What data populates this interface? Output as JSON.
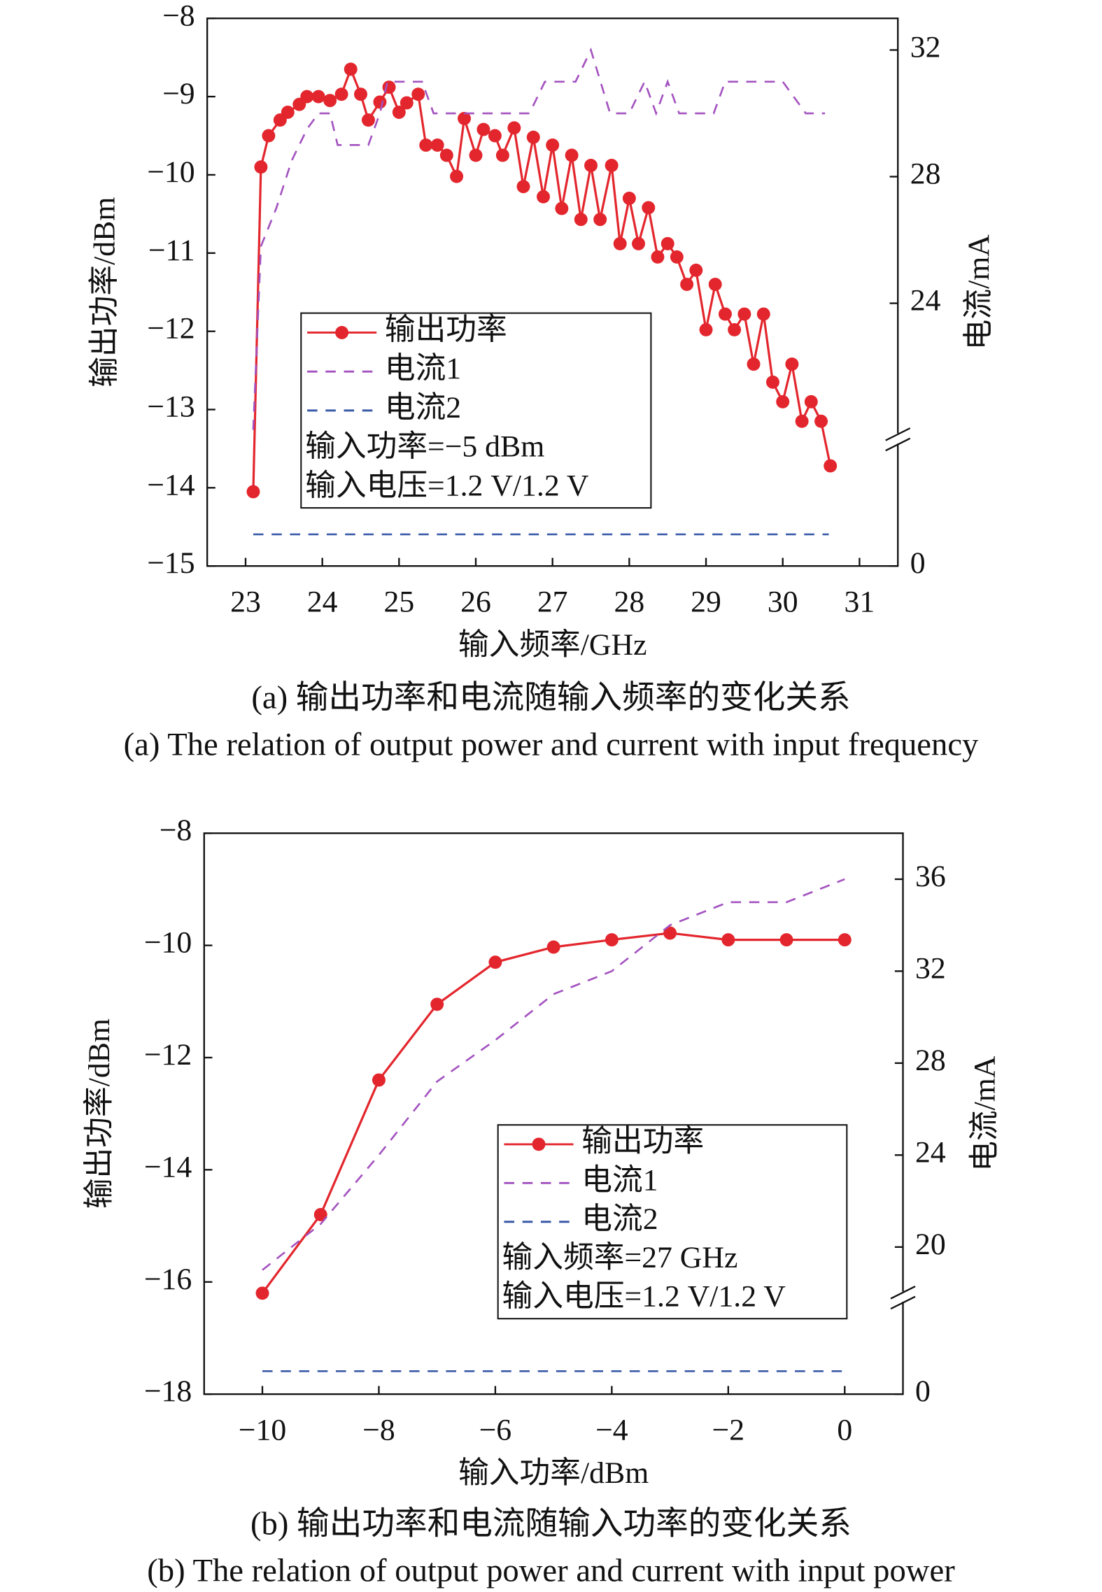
{
  "chart_data": [
    {
      "type": "line",
      "xlabel": "输入频率/GHz",
      "ylabel": "输出功率/dBm",
      "y2label": "电流/mA",
      "caption_zh": "(a) 输出功率和电流随输入频率的变化关系",
      "caption_en": "(a) The relation of output power and current with input frequency",
      "xlim": [
        22.5,
        31.5
      ],
      "xticks": [
        23,
        24,
        25,
        26,
        27,
        28,
        29,
        30,
        31
      ],
      "ylim": [
        -15,
        -8
      ],
      "yticks": [
        {
          "value": -15,
          "label": "−15"
        },
        {
          "value": -14,
          "label": "−14"
        },
        {
          "value": -13,
          "label": "−13"
        },
        {
          "value": -12,
          "label": "−12"
        },
        {
          "value": -11,
          "label": "−11"
        },
        {
          "value": -10,
          "label": "−10"
        },
        {
          "value": -9,
          "label": "−9"
        },
        {
          "value": -8,
          "label": "−8"
        }
      ],
      "y2lim": [
        0,
        33
      ],
      "y2break": [
        4,
        19.7
      ],
      "y2ticks": [
        0,
        24,
        28,
        32
      ],
      "annotations": [
        "输入功率=−5 dBm",
        "输入电压=1.2 V/1.2 V"
      ],
      "series": [
        {
          "name": "输出功率",
          "color": "#e3262d",
          "marker": "circle",
          "dash": false,
          "x": [
            23.1,
            23.2,
            23.3,
            23.45,
            23.55,
            23.7,
            23.8,
            23.95,
            24.1,
            24.25,
            24.37,
            24.5,
            24.6,
            24.75,
            24.87,
            25.0,
            25.1,
            25.25,
            25.35,
            25.5,
            25.62,
            25.75,
            25.85,
            26.0,
            26.1,
            26.25,
            26.35,
            26.5,
            26.62,
            26.75,
            26.88,
            27.0,
            27.12,
            27.25,
            27.37,
            27.5,
            27.62,
            27.77,
            27.88,
            28.0,
            28.12,
            28.25,
            28.37,
            28.5,
            28.62,
            28.75,
            28.87,
            29.0,
            29.12,
            29.25,
            29.37,
            29.5,
            29.62,
            29.75,
            29.87,
            30.0,
            30.12,
            30.25,
            30.37,
            30.5,
            30.62
          ],
          "values": [
            -14.05,
            -9.9,
            -9.5,
            -9.3,
            -9.2,
            -9.1,
            -9.0,
            -9.0,
            -9.05,
            -8.97,
            -8.65,
            -8.97,
            -9.3,
            -9.07,
            -8.88,
            -9.2,
            -9.08,
            -8.97,
            -9.62,
            -9.62,
            -9.75,
            -10.02,
            -9.28,
            -9.75,
            -9.42,
            -9.5,
            -9.75,
            -9.4,
            -10.15,
            -9.52,
            -10.28,
            -9.62,
            -10.43,
            -9.75,
            -10.57,
            -9.88,
            -10.57,
            -9.88,
            -10.88,
            -10.3,
            -10.88,
            -10.42,
            -11.05,
            -10.88,
            -11.05,
            -11.4,
            -11.22,
            -11.98,
            -11.4,
            -11.78,
            -11.98,
            -11.78,
            -12.42,
            -11.78,
            -12.65,
            -12.9,
            -12.42,
            -13.15,
            -12.9,
            -13.15,
            -13.72
          ]
        },
        {
          "name": "电流1",
          "color": "#a352bf",
          "marker": "none",
          "dash": true,
          "axis": "y2",
          "x": [
            23.1,
            23.2,
            23.4,
            23.6,
            23.8,
            23.95,
            24.1,
            24.2,
            24.3,
            24.6,
            24.75,
            24.85,
            25.3,
            25.45,
            26.7,
            26.9,
            27.3,
            27.5,
            27.75,
            28.0,
            28.2,
            28.35,
            28.5,
            28.65,
            29.1,
            29.25,
            30.0,
            30.3,
            30.55
          ],
          "values": [
            20,
            25.8,
            27,
            28.5,
            29.5,
            30,
            30,
            29,
            29,
            29,
            30,
            31,
            31,
            30,
            30,
            31,
            31,
            32,
            30,
            30,
            31,
            30,
            31,
            30,
            30,
            31,
            31,
            30,
            30
          ]
        },
        {
          "name": "电流2",
          "color": "#3a5aa8",
          "marker": "none",
          "dash": true,
          "axis": "y2",
          "x": [
            23.1,
            30.6
          ],
          "values": [
            1,
            1
          ]
        }
      ]
    },
    {
      "type": "line",
      "xlabel": "输入功率/dBm",
      "ylabel": "输出功率/dBm",
      "y2label": "电流/mA",
      "caption_zh": "(b) 输出功率和电流随输入功率的变化关系",
      "caption_en": "(b) The relation of output power and current with input power",
      "xlim": [
        -11,
        1
      ],
      "xticks": [
        {
          "value": -10,
          "label": "−10"
        },
        {
          "value": -8,
          "label": "−8"
        },
        {
          "value": -6,
          "label": "−6"
        },
        {
          "value": -4,
          "label": "−4"
        },
        {
          "value": -2,
          "label": "−2"
        },
        0
      ],
      "ylim": [
        -18,
        -8
      ],
      "yticks": [
        {
          "value": -18,
          "label": "−18"
        },
        {
          "value": -16,
          "label": "−16"
        },
        {
          "value": -14,
          "label": "−14"
        },
        {
          "value": -12,
          "label": "−12"
        },
        {
          "value": -10,
          "label": "−10"
        },
        {
          "value": -8,
          "label": "−8"
        }
      ],
      "y2lim": [
        0,
        38
      ],
      "y2break": [
        4.2,
        17.8
      ],
      "y2ticks": [
        0,
        20,
        24,
        28,
        32,
        36
      ],
      "annotations": [
        "输入频率=27 GHz",
        "输入电压=1.2 V/1.2 V"
      ],
      "series": [
        {
          "name": "输出功率",
          "color": "#e3262d",
          "marker": "circle",
          "dash": false,
          "x": [
            -10,
            -9,
            -8,
            -7,
            -6,
            -5,
            -4,
            -3,
            -2,
            -1,
            0
          ],
          "values": [
            -16.2,
            -14.8,
            -12.4,
            -11.05,
            -10.3,
            -10.03,
            -9.9,
            -9.78,
            -9.9,
            -9.9,
            -9.9
          ]
        },
        {
          "name": "电流1",
          "color": "#a352bf",
          "marker": "none",
          "dash": true,
          "axis": "y2",
          "x": [
            -10,
            -9,
            -8,
            -7,
            -6,
            -5,
            -4,
            -3,
            -2,
            -1,
            0
          ],
          "values": [
            19,
            21,
            24,
            27.2,
            29,
            31,
            32,
            34,
            35,
            35,
            36
          ]
        },
        {
          "name": "电流2",
          "color": "#3a5aa8",
          "marker": "none",
          "dash": true,
          "axis": "y2",
          "x": [
            -10,
            0
          ],
          "values": [
            1,
            1
          ]
        }
      ]
    }
  ]
}
